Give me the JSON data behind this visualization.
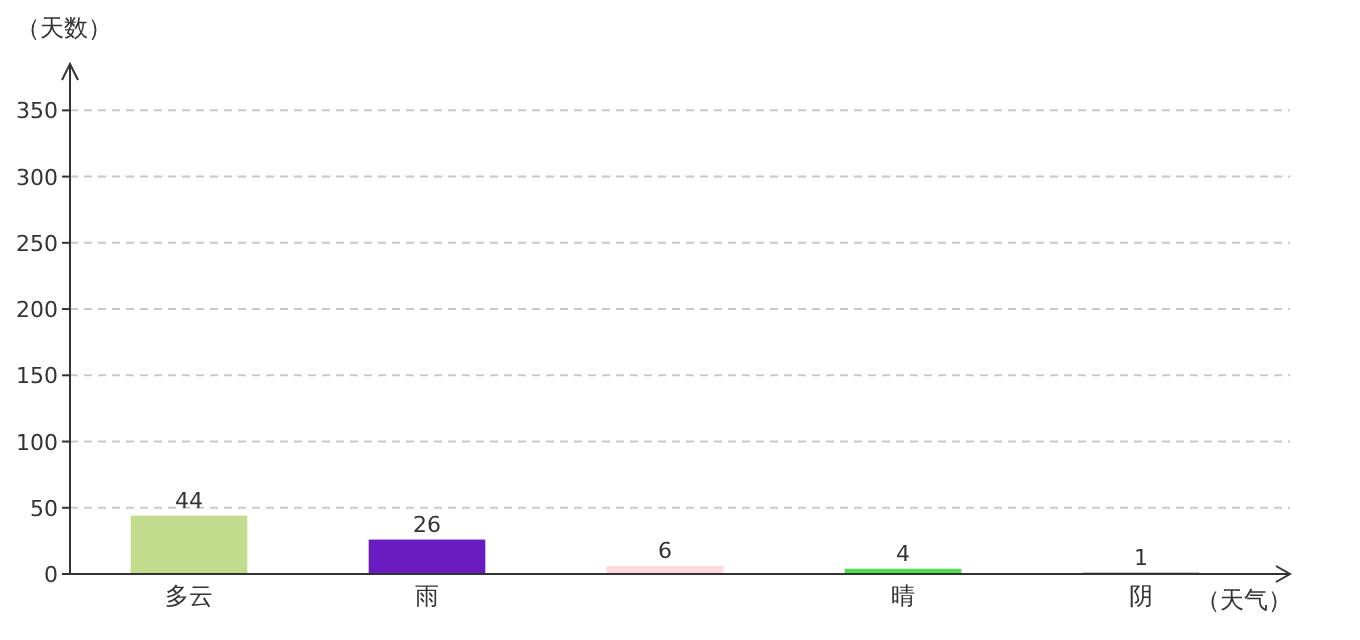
{
  "chart_data": {
    "type": "bar",
    "xlabel": "（天气）",
    "ylabel": "（天数）",
    "categories": [
      "多云",
      "雨",
      null,
      "晴",
      "阴"
    ],
    "values": [
      44,
      26,
      6,
      4,
      1
    ],
    "colors": [
      "#c0dc8c",
      "#6a1cc0",
      "#ffd8e0",
      "#50dc50",
      "#602060"
    ],
    "ylim": [
      0,
      385
    ],
    "yticks": [
      0,
      50,
      100,
      150,
      200,
      250,
      300,
      350
    ],
    "grid": "y",
    "data_labels": true
  }
}
